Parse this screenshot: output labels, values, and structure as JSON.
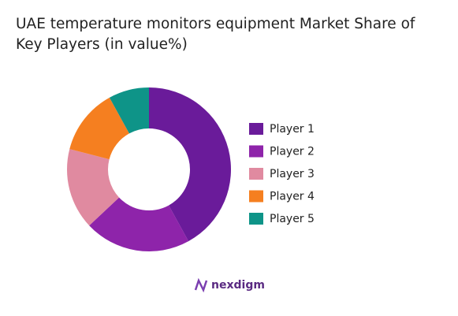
{
  "chart_data": {
    "type": "pie",
    "title": "UAE temperature monitors equipment Market Share of Key Players (in value%)",
    "categories": [
      "Player 1",
      "Player 2",
      "Player 3",
      "Player 4",
      "Player 5"
    ],
    "values": [
      42,
      21,
      16,
      13,
      8
    ],
    "colors": [
      "#6a1b9a",
      "#8e24aa",
      "#e08aa0",
      "#f57f20",
      "#0e9488"
    ],
    "donut": true,
    "legend": "right"
  },
  "footer": {
    "brand": "nexdigm"
  }
}
